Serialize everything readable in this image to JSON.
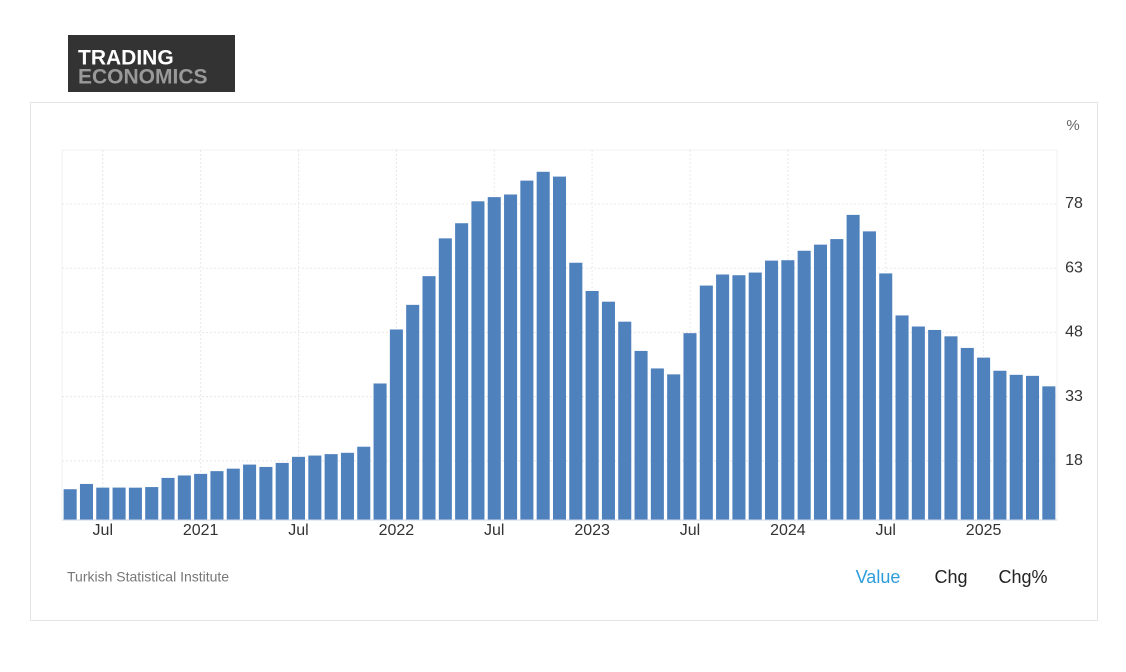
{
  "logo": {
    "line1": "TRADING",
    "line2": "ECONOMICS"
  },
  "chart_data": {
    "type": "bar",
    "unit": "%",
    "source": "Turkish Statistical Institute",
    "buttons": [
      "Value",
      "Chg",
      "Chg%"
    ],
    "color": "#4f81bd",
    "categories": [
      null,
      null,
      "Jul",
      null,
      null,
      null,
      null,
      null,
      "2021",
      null,
      null,
      null,
      null,
      null,
      "Jul",
      null,
      null,
      null,
      null,
      null,
      "2022",
      null,
      null,
      null,
      null,
      null,
      "Jul",
      null,
      null,
      null,
      null,
      null,
      "2023",
      null,
      null,
      null,
      null,
      null,
      "Jul",
      null,
      null,
      null,
      null,
      null,
      "2024",
      null,
      null,
      null,
      null,
      null,
      "Jul",
      null,
      null,
      null,
      null,
      null,
      "2025",
      null,
      null,
      null,
      null
    ],
    "values": [
      11.39,
      12.62,
      11.76,
      11.77,
      11.75,
      11.89,
      14.03,
      14.6,
      14.97,
      15.61,
      16.19,
      17.14,
      16.59,
      17.53,
      18.95,
      19.25,
      19.58,
      19.89,
      21.31,
      36.08,
      48.69,
      54.44,
      61.14,
      69.97,
      73.5,
      78.62,
      79.6,
      80.21,
      83.45,
      85.51,
      84.39,
      64.27,
      57.68,
      55.18,
      50.51,
      43.68,
      39.59,
      38.21,
      47.83,
      58.94,
      61.53,
      61.36,
      61.98,
      64.77,
      64.86,
      67.07,
      68.5,
      69.8,
      75.45,
      71.6,
      61.78,
      51.97,
      49.38,
      48.58,
      47.09,
      44.38,
      42.12,
      39.05,
      38.1,
      37.86,
      35.41
    ],
    "ylim": [
      4.2,
      90.6
    ],
    "yticks": [
      18,
      33,
      48,
      63,
      78
    ],
    "grid": true
  }
}
